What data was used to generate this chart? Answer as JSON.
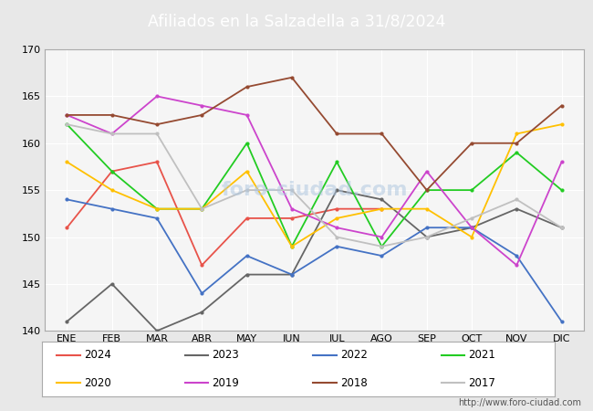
{
  "title": "Afiliados en la Salzadella a 31/8/2024",
  "title_color": "white",
  "title_bg_color": "#5b9bd5",
  "xlabel": "",
  "ylabel": "",
  "ylim": [
    140,
    170
  ],
  "yticks": [
    140,
    145,
    150,
    155,
    160,
    165,
    170
  ],
  "months": [
    "ENE",
    "FEB",
    "MAR",
    "ABR",
    "MAY",
    "JUN",
    "JUL",
    "AGO",
    "SEP",
    "OCT",
    "NOV",
    "DIC"
  ],
  "url": "http://www.foro-ciudad.com",
  "bg_color": "#e8e8e8",
  "plot_bg_color": "#f5f5f5",
  "grid_color": "white",
  "series_order": [
    "2024",
    "2023",
    "2022",
    "2021",
    "2020",
    "2019",
    "2018",
    "2017"
  ],
  "series": {
    "2024": {
      "color": "#e8534a",
      "values": [
        151,
        157,
        158,
        147,
        152,
        152,
        153,
        153,
        null,
        null,
        null,
        null
      ]
    },
    "2023": {
      "color": "#666666",
      "values": [
        141,
        145,
        140,
        142,
        146,
        146,
        155,
        154,
        150,
        151,
        153,
        151
      ]
    },
    "2022": {
      "color": "#4472c4",
      "values": [
        154,
        153,
        152,
        144,
        148,
        146,
        149,
        148,
        151,
        151,
        148,
        141
      ]
    },
    "2021": {
      "color": "#22cc22",
      "values": [
        162,
        157,
        153,
        153,
        160,
        149,
        158,
        149,
        155,
        155,
        159,
        155
      ]
    },
    "2020": {
      "color": "#ffc000",
      "values": [
        158,
        155,
        153,
        153,
        157,
        149,
        152,
        153,
        153,
        150,
        161,
        162
      ]
    },
    "2019": {
      "color": "#cc44cc",
      "values": [
        163,
        161,
        165,
        164,
        163,
        153,
        151,
        150,
        157,
        151,
        147,
        158
      ]
    },
    "2018": {
      "color": "#954a31",
      "values": [
        163,
        163,
        162,
        163,
        166,
        167,
        161,
        161,
        155,
        160,
        160,
        164
      ]
    },
    "2017": {
      "color": "#c0c0c0",
      "values": [
        162,
        161,
        161,
        153,
        155,
        155,
        150,
        149,
        150,
        152,
        154,
        151
      ]
    }
  }
}
